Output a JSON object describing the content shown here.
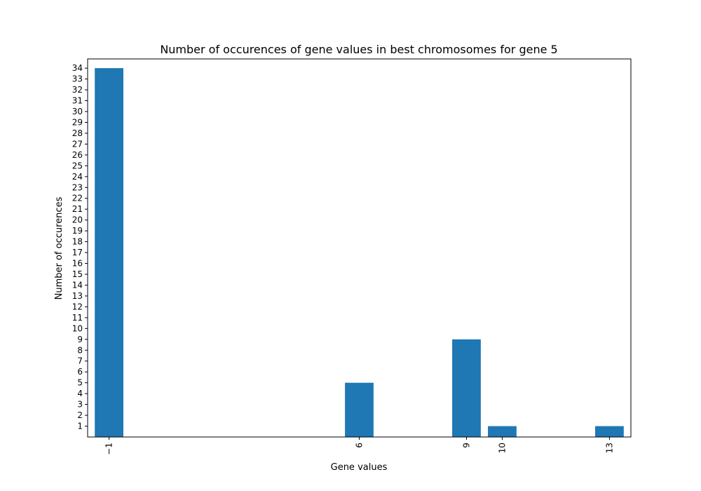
{
  "chart_data": {
    "type": "bar",
    "title": "Number of occurences of gene values in best chromosomes for gene 5",
    "xlabel": "Gene values",
    "ylabel": "Number of occurences",
    "x": [
      -1,
      6,
      9,
      10,
      13
    ],
    "x_tick_labels": [
      "−1",
      "6",
      "9",
      "10",
      "13"
    ],
    "values": [
      34,
      5,
      9,
      1,
      1
    ],
    "y_ticks": [
      1,
      2,
      3,
      4,
      5,
      6,
      7,
      8,
      9,
      10,
      11,
      12,
      13,
      14,
      15,
      16,
      17,
      18,
      19,
      20,
      21,
      22,
      23,
      24,
      25,
      26,
      27,
      28,
      29,
      30,
      31,
      32,
      33,
      34
    ],
    "xlim": [
      -1.6,
      13.6
    ],
    "ylim": [
      0,
      34.85
    ],
    "bar_color": "#1f77b4",
    "grid": false,
    "legend": "none"
  }
}
